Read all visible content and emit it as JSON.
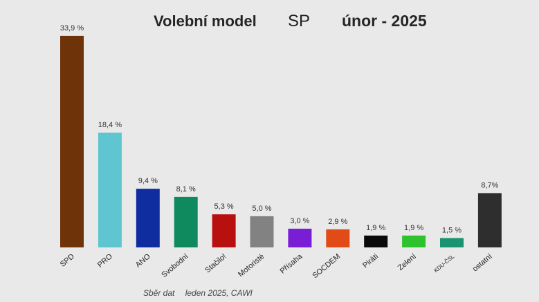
{
  "title": {
    "main": "Volební model",
    "agency": "SP",
    "date": "únor - 2025"
  },
  "footer": {
    "source": "Sběr dat",
    "method": "leden 2025, CAWI"
  },
  "chart_data": {
    "type": "bar",
    "categories": [
      "SPD",
      "PRO",
      "ANO",
      "Svobodní",
      "Stačilo!",
      "Motoristé",
      "Přísaha",
      "SOCDEM",
      "Piráti",
      "Zelení",
      "KDU-ČSL",
      "ostatní"
    ],
    "values": [
      33.9,
      18.4,
      9.4,
      8.1,
      5.3,
      5.0,
      3.0,
      2.9,
      1.9,
      1.9,
      1.5,
      8.7
    ],
    "value_labels": [
      "33,9 %",
      "18,4 %",
      "9,4 %",
      "8,1 %",
      "5,3 %",
      "5,0 %",
      "3,0 %",
      "2,9 %",
      "1,9 %",
      "1,9 %",
      "1,5 %",
      "8,7%"
    ],
    "colors": [
      "#6e3308",
      "#5fc5d1",
      "#0f2d9e",
      "#0f8a5e",
      "#b80f0f",
      "#828282",
      "#7a1ed6",
      "#e04b17",
      "#0a0a0a",
      "#2fc22f",
      "#1a9470",
      "#2e2e2e"
    ],
    "ylim": [
      0,
      34
    ],
    "grid": false,
    "legend": "none",
    "xlabel": "",
    "ylabel": ""
  }
}
